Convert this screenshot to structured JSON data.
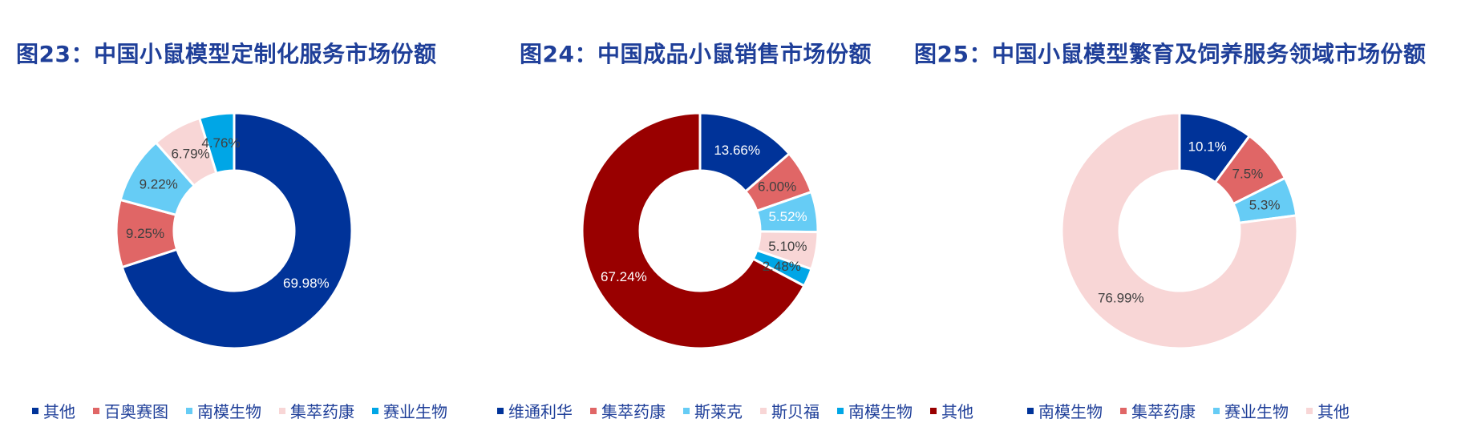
{
  "chart_data": [
    {
      "type": "pie",
      "title": "图23：中国小鼠模型定制化服务市场份额",
      "slices": [
        {
          "name": "其他",
          "value": 69.98,
          "label": "69.98%",
          "color": "#003399",
          "label_color": "#ffffff"
        },
        {
          "name": "百奥赛图",
          "value": 9.25,
          "label": "9.25%",
          "color": "#e06666",
          "label_color": "#404040"
        },
        {
          "name": "南模生物",
          "value": 9.22,
          "label": "9.22%",
          "color": "#66ccf5",
          "label_color": "#404040"
        },
        {
          "name": "集萃药康",
          "value": 6.79,
          "label": "6.79%",
          "color": "#f8d6d6",
          "label_color": "#404040"
        },
        {
          "name": "赛业生物",
          "value": 4.76,
          "label": "4.76%",
          "color": "#00a6e6",
          "label_color": "#404040"
        }
      ],
      "legend_order": [
        "其他",
        "百奥赛图",
        "南模生物",
        "集萃药康",
        "赛业生物"
      ]
    },
    {
      "type": "pie",
      "title": "图24：中国成品小鼠销售市场份额",
      "slices": [
        {
          "name": "维通利华",
          "value": 13.66,
          "label": "13.66%",
          "color": "#003399",
          "label_color": "#ffffff"
        },
        {
          "name": "集萃药康",
          "value": 6.0,
          "label": "6.00%",
          "color": "#e06666",
          "label_color": "#404040"
        },
        {
          "name": "斯莱克",
          "value": 5.52,
          "label": "5.52%",
          "color": "#66ccf5",
          "label_color": "#ffffff"
        },
        {
          "name": "斯贝福",
          "value": 5.1,
          "label": "5.10%",
          "color": "#f8d6d6",
          "label_color": "#404040"
        },
        {
          "name": "南模生物",
          "value": 2.48,
          "label": "2.48%",
          "color": "#00a6e6",
          "label_color": "#404040"
        },
        {
          "name": "其他",
          "value": 67.24,
          "label": "67.24%",
          "color": "#990000",
          "label_color": "#ffffff"
        }
      ],
      "legend_order": [
        "维通利华",
        "集萃药康",
        "斯莱克",
        "斯贝福",
        "南模生物",
        "其他"
      ]
    },
    {
      "type": "pie",
      "title": "图25：中国小鼠模型繁育及饲养服务领域市场份额",
      "slices": [
        {
          "name": "南模生物",
          "value": 10.1,
          "label": "10.1%",
          "color": "#003399",
          "label_color": "#ffffff"
        },
        {
          "name": "集萃药康",
          "value": 7.5,
          "label": "7.5%",
          "color": "#e06666",
          "label_color": "#404040"
        },
        {
          "name": "赛业生物",
          "value": 5.3,
          "label": "5.3%",
          "color": "#66ccf5",
          "label_color": "#404040"
        },
        {
          "name": "其他",
          "value": 76.99,
          "label": "76.99%",
          "color": "#f8d6d6",
          "label_color": "#404040"
        }
      ],
      "legend_order": [
        "南模生物",
        "集萃药康",
        "赛业生物",
        "其他"
      ]
    }
  ]
}
